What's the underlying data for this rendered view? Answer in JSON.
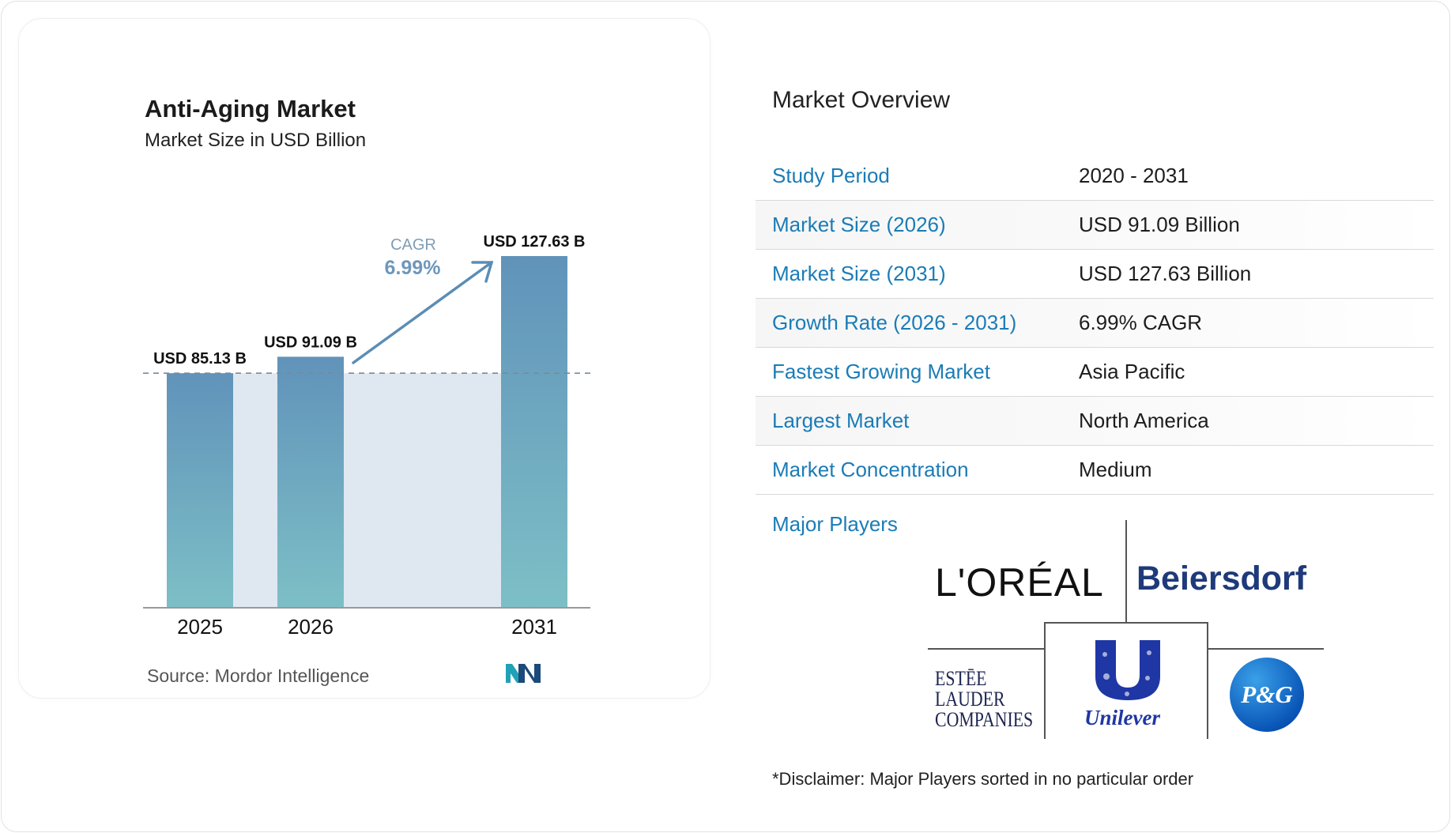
{
  "chart_data": {
    "type": "bar",
    "title": "Anti-Aging Market",
    "subtitle": "Market Size in USD Billion",
    "categories": [
      "2025",
      "2026",
      "2031"
    ],
    "values": [
      85.13,
      91.09,
      127.63
    ],
    "data_labels": [
      "USD 85.13 B",
      "USD 91.09 B",
      "USD 127.63 B"
    ],
    "ylim": [
      0,
      127.63
    ],
    "reference_line": 85.13,
    "annotation": {
      "label": "CAGR",
      "value": "6.99%"
    },
    "source": "Source:  Mordor Intelligence"
  },
  "overview": {
    "title": "Market Overview",
    "rows": [
      {
        "label": "Study Period",
        "value": "2020 - 2031"
      },
      {
        "label": "Market Size (2026)",
        "value": "USD 91.09 Billion"
      },
      {
        "label": "Market Size (2031)",
        "value": "USD 127.63 Billion"
      },
      {
        "label": "Growth Rate (2026 - 2031)",
        "value": "6.99% CAGR"
      },
      {
        "label": "Fastest Growing Market",
        "value": "Asia Pacific"
      },
      {
        "label": "Largest Market",
        "value": "North America"
      },
      {
        "label": "Market Concentration",
        "value": "Medium"
      }
    ],
    "major_players_label": "Major Players",
    "players": [
      "L'ORÉAL",
      "Beiersdorf",
      "ESTĒE LAUDER COMPANIES",
      "Unilever",
      "P&G"
    ],
    "disclaimer": "*Disclaimer: Major Players sorted in no particular order"
  },
  "colors": {
    "accent": "#1b7cb6",
    "bar_top": "#6193ba",
    "bar_bottom": "#7dbfc6",
    "arrow": "#5b8db5"
  }
}
